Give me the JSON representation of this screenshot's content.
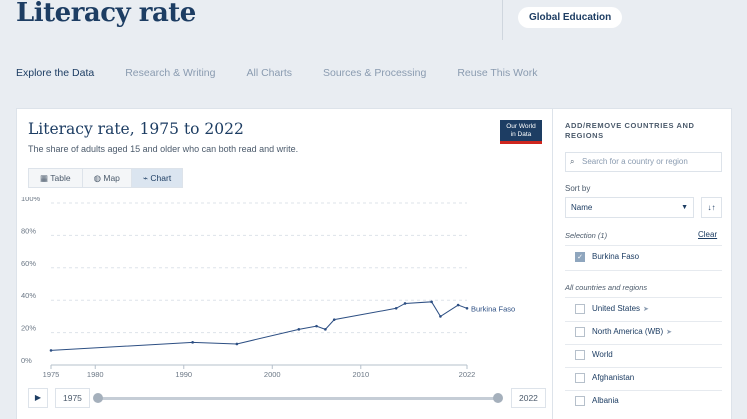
{
  "header": {
    "title": "Literacy rate",
    "pill": "Global Education"
  },
  "tabs": [
    "Explore the Data",
    "Research & Writing",
    "All Charts",
    "Sources & Processing",
    "Reuse This Work"
  ],
  "chart_card": {
    "title": "Literacy rate, 1975 to 2022",
    "subtitle": "The share of adults aged 15 and older who can both read and write.",
    "logo_line1": "Our World",
    "logo_line2": "in Data",
    "views": [
      "Table",
      "Map",
      "Chart"
    ],
    "active_view": "Chart"
  },
  "chart_data": {
    "type": "line",
    "title": "Literacy rate, 1975 to 2022",
    "ylim": [
      0,
      100
    ],
    "xlim": [
      1975,
      2022
    ],
    "y_ticks": [
      "100%",
      "80%",
      "60%",
      "40%",
      "20%",
      "0%"
    ],
    "x_ticks": [
      "1975",
      "1980",
      "1990",
      "2000",
      "2010",
      "2022"
    ],
    "series": [
      {
        "name": "Burkina Faso",
        "x": [
          1975,
          1991,
          1996,
          2003,
          2005,
          2006,
          2007,
          2014,
          2015,
          2018,
          2019,
          2021,
          2022
        ],
        "values": [
          9,
          14,
          13,
          22,
          24,
          22,
          28,
          35,
          38,
          39,
          30,
          37,
          35
        ]
      }
    ]
  },
  "timeline": {
    "start": "1975",
    "end": "2022"
  },
  "sidebar": {
    "heading": "ADD/REMOVE COUNTRIES AND REGIONS",
    "search_placeholder": "Search for a country or region",
    "sort_label": "Sort by",
    "sort_value": "Name",
    "selection_label": "Selection (1)",
    "clear_label": "Clear",
    "selected": [
      {
        "label": "Burkina Faso",
        "checked": true
      }
    ],
    "all_label": "All countries and regions",
    "all_items": [
      {
        "label": "United States",
        "arrow": true
      },
      {
        "label": "North America (WB)",
        "arrow": true
      },
      {
        "label": "World",
        "arrow": false
      },
      {
        "label": "Afghanistan",
        "arrow": false
      },
      {
        "label": "Albania",
        "arrow": false
      }
    ]
  },
  "colors": {
    "brand": "#1d3d63",
    "series": "#2d4f83",
    "logo_accent": "#ce261e"
  }
}
